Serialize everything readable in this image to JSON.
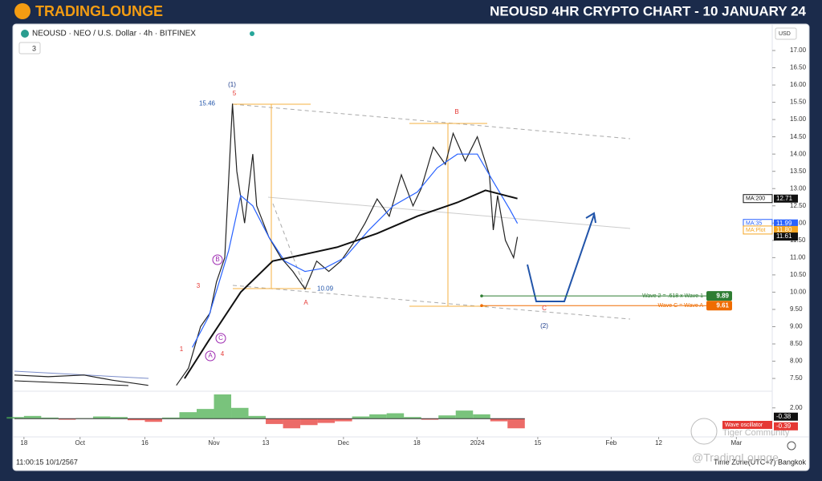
{
  "header": {
    "logo": "TRADINGLOUNGE",
    "title": "NEOUSD 4HR CRYPTO CHART - 10 JANUARY 24"
  },
  "chart_data": {
    "type": "line",
    "symbol": "NEOUSD · NEO / U.S. Dollar · 4h · BITFINEX",
    "badge": "3",
    "currency": "USD",
    "xlim": [
      -2.2,
      173.3
    ],
    "xticks": [
      {
        "value": 0,
        "label": "18"
      },
      {
        "value": 13,
        "label": "Oct"
      },
      {
        "value": 28,
        "label": "16"
      },
      {
        "value": 44,
        "label": "Nov"
      },
      {
        "value": 56,
        "label": "13"
      },
      {
        "value": 74,
        "label": "Dec"
      },
      {
        "value": 91,
        "label": "18"
      },
      {
        "value": 105,
        "label": "2024"
      },
      {
        "value": 119,
        "label": "15"
      },
      {
        "value": 136,
        "label": "Feb"
      },
      {
        "value": 147,
        "label": "12"
      },
      {
        "value": 165,
        "label": "Mar"
      }
    ],
    "ylim": [
      7.2,
      17.65
    ],
    "yticks": [
      {
        "value": 7.5,
        "label": "7.50"
      },
      {
        "value": 8,
        "label": "8.00"
      },
      {
        "value": 8.5,
        "label": "8.50"
      },
      {
        "value": 9,
        "label": "9.00"
      },
      {
        "value": 9.5,
        "label": "9.50"
      },
      {
        "value": 10,
        "label": "10.00"
      },
      {
        "value": 10.5,
        "label": "10.50"
      },
      {
        "value": 11,
        "label": "11.00"
      },
      {
        "value": 11.5,
        "label": "11.50"
      },
      {
        "value": 12,
        "label": "12.00"
      },
      {
        "value": 12.5,
        "label": "12.50"
      },
      {
        "value": 13,
        "label": "13.00"
      },
      {
        "value": 13.5,
        "label": "13.50"
      },
      {
        "value": 14,
        "label": "14.00"
      },
      {
        "value": 14.5,
        "label": "14.50"
      },
      {
        "value": 15,
        "label": "15.00"
      },
      {
        "value": 15.5,
        "label": "15.50"
      },
      {
        "value": 16,
        "label": "16.00"
      },
      {
        "value": 16.5,
        "label": "16.50"
      },
      {
        "value": 17,
        "label": "17.00"
      }
    ],
    "series": [
      {
        "name": "NEOUSD",
        "color": "#222222",
        "x": [
          -2.2,
          5.6,
          13.9,
          20.4,
          28.8,
          32,
          35.3,
          38.1,
          40.9,
          43.1,
          44.6,
          46.5,
          48.3,
          49.3,
          51.1,
          53.0,
          53.9,
          56.7,
          59.5,
          62.3,
          65.1,
          67.8,
          70.6,
          73.4,
          76.2,
          79.0,
          81.8,
          84.6,
          87.4,
          90.1,
          92.0,
          94.8,
          97.6,
          99.4,
          102.2,
          105.0,
          107.8,
          108.7,
          109.7,
          111.5,
          113.4,
          114.3
        ],
        "values": [
          7.6,
          7.55,
          7.6,
          7.45,
          7.3,
          null,
          7.3,
          7.8,
          9.0,
          9.4,
          10.3,
          11.0,
          15.46,
          13.5,
          12.0,
          14.0,
          12.5,
          11.6,
          11.0,
          10.6,
          10.09,
          10.9,
          10.6,
          10.9,
          11.4,
          12.0,
          12.7,
          12.2,
          13.4,
          12.5,
          13.0,
          14.2,
          13.7,
          14.6,
          13.8,
          14.5,
          13.4,
          11.8,
          12.8,
          11.5,
          11.0,
          11.6
        ]
      },
      {
        "name": "MA:35",
        "color": "#2962ff",
        "x": [
          39.0,
          42.8,
          47.4,
          50.2,
          53.0,
          56.7,
          60.4,
          65.1,
          69.7,
          74.3,
          79.9,
          85.5,
          91.1,
          95.7,
          100.4,
          105.0,
          108.7,
          112.5,
          114.3
        ],
        "values": [
          8.4,
          9.3,
          11.2,
          12.8,
          12.5,
          11.6,
          10.9,
          10.6,
          10.7,
          11.0,
          11.8,
          12.5,
          12.9,
          13.6,
          14.0,
          14.0,
          13.2,
          12.4,
          11.99
        ]
      },
      {
        "name": "MA:200",
        "color": "#111111",
        "x": [
          37.2,
          42.8,
          50.2,
          57.6,
          65.1,
          72.5,
          81.8,
          91.1,
          100.4,
          106.9,
          114.3
        ],
        "values": [
          7.5,
          8.6,
          10.0,
          10.9,
          11.1,
          11.3,
          11.7,
          12.2,
          12.6,
          12.95,
          12.71
        ]
      }
    ],
    "price_tags": [
      {
        "name": "MA:200",
        "value": 12.71,
        "color": "#111111"
      },
      {
        "name": "MA:35",
        "value": 11.99,
        "color": "#2962ff"
      },
      {
        "name": "MA:Plot",
        "value": 11.8,
        "value_label": "11.80",
        "color": "#f5a623"
      },
      {
        "value": 11.61,
        "color": "#111111"
      }
    ],
    "pivots": [
      15.46,
      10.09
    ],
    "levels": [
      {
        "text": "Wave 2 = .618 x Wave 1",
        "value": 9.89,
        "color": "#2e7d32"
      },
      {
        "text": "Wave C = Wave A",
        "value": 9.61,
        "color": "#ef6c00"
      }
    ],
    "annotations": [
      "(1)",
      "5",
      "B",
      "3",
      "A",
      "1",
      "4",
      "C",
      "(2)",
      "B",
      "C",
      "A"
    ],
    "oscillator": {
      "name": "Wave oscillator",
      "ylim": [
        -3.4,
        4.8
      ],
      "yticks": [
        {
          "value": 2,
          "label": "2.00"
        }
      ],
      "x": [
        -2,
        2,
        6,
        10,
        14,
        18,
        22,
        26,
        30,
        34,
        38,
        42,
        46,
        50,
        54,
        58,
        62,
        66,
        70,
        74,
        78,
        82,
        86,
        90,
        94,
        98,
        102,
        106,
        110,
        114
      ],
      "values": [
        0.3,
        0.5,
        0.2,
        -0.2,
        0.1,
        0.4,
        0.3,
        -0.3,
        -0.6,
        0.2,
        1.2,
        1.8,
        4.5,
        2.0,
        0.5,
        -1.0,
        -1.8,
        -1.2,
        -0.8,
        -0.5,
        0.4,
        0.8,
        1.0,
        0.3,
        -0.2,
        0.6,
        1.5,
        0.8,
        -0.5,
        -1.8
      ],
      "tags": [
        -0.38,
        -0.39
      ]
    }
  },
  "footer": {
    "time": "11:00:15 10/1/2567",
    "timezone": "Time Zone(UTC+7) Bangkok",
    "watermark1": "Tiger Community",
    "watermark2": "@TradingLounge"
  }
}
